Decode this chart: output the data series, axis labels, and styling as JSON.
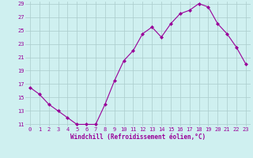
{
  "x": [
    0,
    1,
    2,
    3,
    4,
    5,
    6,
    7,
    8,
    9,
    10,
    11,
    12,
    13,
    14,
    15,
    16,
    17,
    18,
    19,
    20,
    21,
    22,
    23
  ],
  "y": [
    16.5,
    15.5,
    14.0,
    13.0,
    12.0,
    11.0,
    11.0,
    11.0,
    14.0,
    17.5,
    20.5,
    22.0,
    24.5,
    25.5,
    24.0,
    26.0,
    27.5,
    28.0,
    29.0,
    28.5,
    26.0,
    24.5,
    22.5,
    20.0
  ],
  "xlabel": "Windchill (Refroidissement éolien,°C)",
  "ylim": [
    11,
    29
  ],
  "xlim": [
    -0.5,
    23.5
  ],
  "yticks": [
    11,
    13,
    15,
    17,
    19,
    21,
    23,
    25,
    27,
    29
  ],
  "xticks": [
    0,
    1,
    2,
    3,
    4,
    5,
    6,
    7,
    8,
    9,
    10,
    11,
    12,
    13,
    14,
    15,
    16,
    17,
    18,
    19,
    20,
    21,
    22,
    23
  ],
  "line_color": "#990099",
  "marker": "D",
  "marker_size": 2,
  "bg_color": "#cff0f0",
  "grid_color": "#aacccc",
  "font_color": "#990099",
  "tick_fontsize": 5,
  "xlabel_fontsize": 5.5
}
